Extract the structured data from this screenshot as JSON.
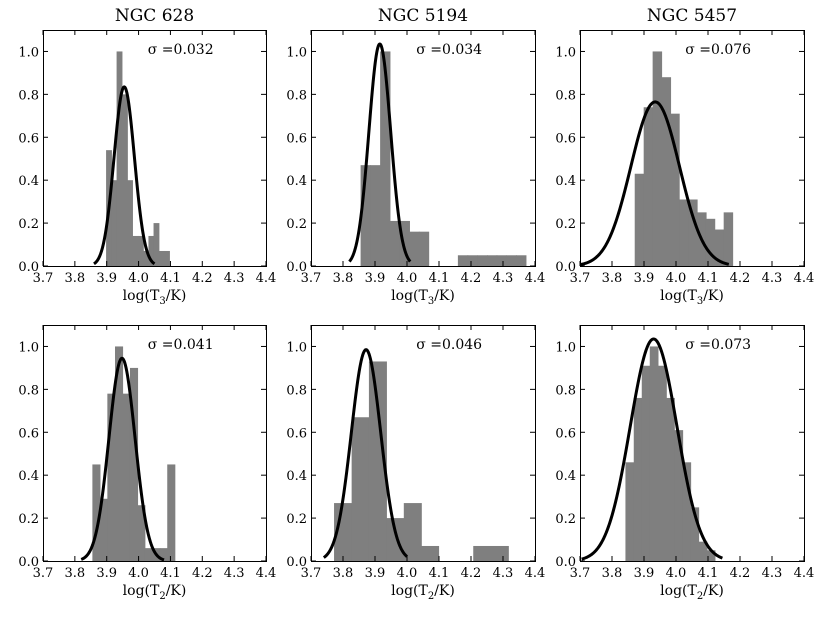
{
  "figure": {
    "background": "#ffffff",
    "bar_color": "#7f7f7f",
    "curve_color": "#000000"
  },
  "chart_data": [
    {
      "type": "bar",
      "title": "NGC 628",
      "xlabel": "log(T3/K)",
      "xlabel_base": "log(T",
      "xlabel_sub": "3",
      "xlabel_tail": "/K)",
      "xlim": [
        3.7,
        4.4
      ],
      "ylim": [
        0,
        1.1
      ],
      "xticks": [
        "3.7",
        "3.8",
        "3.9",
        "4.0",
        "4.1",
        "4.2",
        "4.3",
        "4.4"
      ],
      "yticks": [
        "0.0",
        "0.2",
        "0.4",
        "0.6",
        "0.8",
        "1.0"
      ],
      "bin_width": 0.0165,
      "bins": [
        {
          "x": 3.898,
          "h": 0.54
        },
        {
          "x": 3.915,
          "h": 0.4
        },
        {
          "x": 3.931,
          "h": 1.0
        },
        {
          "x": 3.948,
          "h": 0.8
        },
        {
          "x": 3.964,
          "h": 0.4
        },
        {
          "x": 3.981,
          "h": 0.14
        },
        {
          "x": 3.998,
          "h": 0.14
        },
        {
          "x": 4.014,
          "h": 0.07
        },
        {
          "x": 4.031,
          "h": 0.14
        },
        {
          "x": 4.047,
          "h": 0.2
        },
        {
          "x": 4.064,
          "h": 0.07
        },
        {
          "x": 4.08,
          "h": 0.07
        }
      ],
      "gaussian": {
        "mu": 3.955,
        "sigma": 0.032,
        "amp": 0.835,
        "from": 3.86,
        "to": 4.05
      },
      "sigma_label": "σ =0.032"
    },
    {
      "type": "bar",
      "title": "NGC 5194",
      "xlabel": "log(T3/K)",
      "xlabel_base": "log(T",
      "xlabel_sub": "3",
      "xlabel_tail": "/K)",
      "xlim": [
        3.7,
        4.4
      ],
      "ylim": [
        0,
        1.1
      ],
      "xticks": [
        "3.7",
        "3.8",
        "3.9",
        "4.0",
        "4.1",
        "4.2",
        "4.3",
        "4.4"
      ],
      "yticks": [
        "0.0",
        "0.2",
        "0.4",
        "0.6",
        "0.8",
        "1.0"
      ],
      "bin_width": 0.0304,
      "bins": [
        {
          "x": 3.855,
          "h": 0.47
        },
        {
          "x": 3.885,
          "h": 0.47
        },
        {
          "x": 3.916,
          "h": 1.0
        },
        {
          "x": 3.946,
          "h": 0.21
        },
        {
          "x": 3.977,
          "h": 0.21
        },
        {
          "x": 4.007,
          "h": 0.16
        },
        {
          "x": 4.037,
          "h": 0.16
        },
        {
          "x": 4.159,
          "h": 0.05
        },
        {
          "x": 4.189,
          "h": 0.05
        },
        {
          "x": 4.22,
          "h": 0.05
        },
        {
          "x": 4.25,
          "h": 0.05
        },
        {
          "x": 4.28,
          "h": 0.05
        },
        {
          "x": 4.311,
          "h": 0.05
        },
        {
          "x": 4.341,
          "h": 0.05
        }
      ],
      "gaussian": {
        "mu": 3.915,
        "sigma": 0.034,
        "amp": 1.035,
        "from": 3.82,
        "to": 4.01
      },
      "sigma_label": "σ =0.034"
    },
    {
      "type": "bar",
      "title": "NGC 5457",
      "xlabel": "log(T3/K)",
      "xlabel_base": "log(T",
      "xlabel_sub": "3",
      "xlabel_tail": "/K)",
      "xlim": [
        3.7,
        4.4
      ],
      "ylim": [
        0,
        1.1
      ],
      "xticks": [
        "3.7",
        "3.8",
        "3.9",
        "4.0",
        "4.1",
        "4.2",
        "4.3",
        "4.4"
      ],
      "yticks": [
        "0.0",
        "0.2",
        "0.4",
        "0.6",
        "0.8",
        "1.0"
      ],
      "bin_width": 0.0277,
      "bins": [
        {
          "x": 3.871,
          "h": 0.43
        },
        {
          "x": 3.899,
          "h": 0.74
        },
        {
          "x": 3.927,
          "h": 1.0
        },
        {
          "x": 3.955,
          "h": 0.88
        },
        {
          "x": 3.982,
          "h": 0.71
        },
        {
          "x": 4.01,
          "h": 0.31
        },
        {
          "x": 4.038,
          "h": 0.31
        },
        {
          "x": 4.066,
          "h": 0.25
        },
        {
          "x": 4.093,
          "h": 0.22
        },
        {
          "x": 4.121,
          "h": 0.17
        },
        {
          "x": 4.149,
          "h": 0.25
        }
      ],
      "gaussian": {
        "mu": 3.935,
        "sigma": 0.076,
        "amp": 0.765,
        "from": 3.7,
        "to": 4.165
      },
      "sigma_label": "σ =0.076"
    },
    {
      "type": "bar",
      "title": "",
      "xlabel": "log(T2/K)",
      "xlabel_base": "log(T",
      "xlabel_sub": "2",
      "xlabel_tail": "/K)",
      "xlim": [
        3.7,
        4.4
      ],
      "ylim": [
        0,
        1.1
      ],
      "xticks": [
        "3.7",
        "3.8",
        "3.9",
        "4.0",
        "4.1",
        "4.2",
        "4.3",
        "4.4"
      ],
      "yticks": [
        "0.0",
        "0.2",
        "0.4",
        "0.6",
        "0.8",
        "1.0"
      ],
      "bin_width": 0.0235,
      "bins": [
        {
          "x": 3.855,
          "h": 0.45
        },
        {
          "x": 3.879,
          "h": 0.29
        },
        {
          "x": 3.902,
          "h": 0.78
        },
        {
          "x": 3.926,
          "h": 1.0
        },
        {
          "x": 3.949,
          "h": 0.78
        },
        {
          "x": 3.973,
          "h": 0.9
        },
        {
          "x": 3.996,
          "h": 0.26
        },
        {
          "x": 4.02,
          "h": 0.06
        },
        {
          "x": 4.043,
          "h": 0.06
        },
        {
          "x": 4.067,
          "h": 0.06
        },
        {
          "x": 4.09,
          "h": 0.45
        }
      ],
      "gaussian": {
        "mu": 3.948,
        "sigma": 0.041,
        "amp": 0.945,
        "from": 3.82,
        "to": 4.08
      },
      "sigma_label": "σ =0.041"
    },
    {
      "type": "bar",
      "title": "",
      "xlabel": "log(T2/K)",
      "xlabel_base": "log(T",
      "xlabel_sub": "2",
      "xlabel_tail": "/K)",
      "xlim": [
        3.7,
        4.4
      ],
      "ylim": [
        0,
        1.1
      ],
      "xticks": [
        "3.7",
        "3.8",
        "3.9",
        "4.0",
        "4.1",
        "4.2",
        "4.3",
        "4.4"
      ],
      "yticks": [
        "0.0",
        "0.2",
        "0.4",
        "0.6",
        "0.8",
        "1.0"
      ],
      "bin_width": 0.0544,
      "bins": [
        {
          "x": 3.772,
          "h": 0.27
        },
        {
          "x": 3.827,
          "h": 0.67
        },
        {
          "x": 3.881,
          "h": 0.93
        },
        {
          "x": 3.935,
          "h": 0.2
        },
        {
          "x": 3.99,
          "h": 0.27
        },
        {
          "x": 4.044,
          "h": 0.07
        },
        {
          "x": 4.207,
          "h": 0.07
        },
        {
          "x": 4.262,
          "h": 0.07
        }
      ],
      "gaussian": {
        "mu": 3.872,
        "sigma": 0.046,
        "amp": 0.985,
        "from": 3.74,
        "to": 4.0
      },
      "sigma_label": "σ =0.046"
    },
    {
      "type": "bar",
      "title": "",
      "xlabel": "log(T2/K)",
      "xlabel_base": "log(T",
      "xlabel_sub": "2",
      "xlabel_tail": "/K)",
      "xlim": [
        3.7,
        4.4
      ],
      "ylim": [
        0,
        1.1
      ],
      "xticks": [
        "3.7",
        "3.8",
        "3.9",
        "4.0",
        "4.1",
        "4.2",
        "4.3",
        "4.4"
      ],
      "yticks": [
        "0.0",
        "0.2",
        "0.4",
        "0.6",
        "0.8",
        "1.0"
      ],
      "bin_width": 0.0254,
      "bins": [
        {
          "x": 3.842,
          "h": 0.46
        },
        {
          "x": 3.868,
          "h": 0.76
        },
        {
          "x": 3.893,
          "h": 0.91
        },
        {
          "x": 3.918,
          "h": 1.0
        },
        {
          "x": 3.944,
          "h": 0.91
        },
        {
          "x": 3.969,
          "h": 0.76
        },
        {
          "x": 3.995,
          "h": 0.61
        },
        {
          "x": 4.02,
          "h": 0.46
        },
        {
          "x": 4.045,
          "h": 0.25
        },
        {
          "x": 4.071,
          "h": 0.09
        },
        {
          "x": 4.096,
          "h": 0.05
        }
      ],
      "gaussian": {
        "mu": 3.93,
        "sigma": 0.073,
        "amp": 1.035,
        "from": 3.705,
        "to": 4.145
      },
      "sigma_label": "σ =0.073"
    }
  ]
}
